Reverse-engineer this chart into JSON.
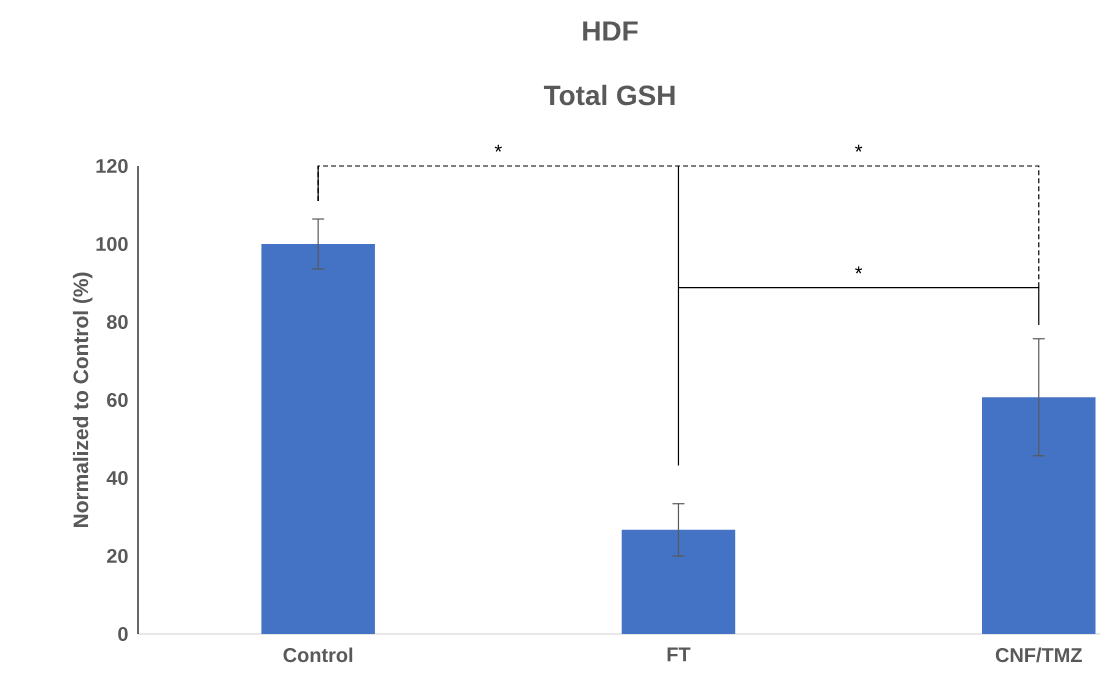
{
  "chart_data": {
    "type": "bar",
    "title": "HDF",
    "subtitle": "Total GSH",
    "ylabel": "Normalized to Control (%)",
    "categories": [
      "Control",
      "FT",
      "CNF/TMZ"
    ],
    "values": [
      100,
      26.7,
      60.7
    ],
    "errors": [
      6.4,
      6.7,
      15
    ],
    "color": "#4472c4",
    "ylim": [
      0,
      120
    ],
    "yticks": [
      0,
      20,
      40,
      60,
      80,
      100,
      120
    ],
    "grid": false,
    "annotations": [
      "*",
      "*",
      "*"
    ]
  }
}
